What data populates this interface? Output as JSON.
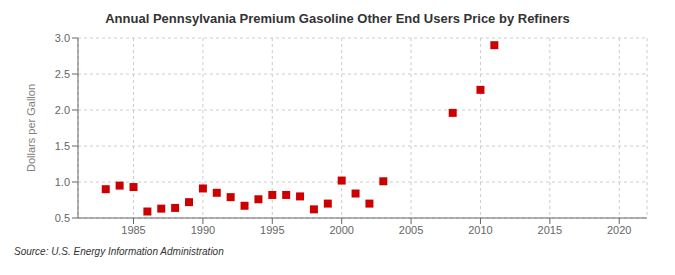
{
  "chart_data": {
    "type": "scatter",
    "title": "Annual Pennsylvania Premium Gasoline Other End Users Price by Refiners",
    "ylabel": "Dollars per Gallon",
    "annotations": [
      "Source: U.S. Energy Information Administration"
    ],
    "color": "#cc0000",
    "marker": "square",
    "grid": true,
    "x": [
      1983,
      1984,
      1985,
      1986,
      1987,
      1988,
      1989,
      1990,
      1991,
      1992,
      1993,
      1994,
      1995,
      1996,
      1997,
      1998,
      1999,
      2000,
      2001,
      2002,
      2003,
      2008,
      2010,
      2011
    ],
    "values": [
      0.9,
      0.95,
      0.93,
      0.59,
      0.63,
      0.64,
      0.72,
      0.91,
      0.85,
      0.79,
      0.67,
      0.76,
      0.82,
      0.82,
      0.8,
      0.62,
      0.7,
      1.02,
      0.84,
      0.7,
      1.01,
      1.96,
      2.28,
      2.9
    ],
    "xlim": [
      1981,
      2022
    ],
    "xticks": [
      1985,
      1990,
      1995,
      2000,
      2005,
      2010,
      2015,
      2020
    ],
    "ylim": [
      0.5,
      3.0
    ],
    "yticks": [
      0.5,
      {
        "value": 1,
        "label": "1.0"
      },
      1.5,
      {
        "value": 2,
        "label": "2.0"
      },
      2.5,
      {
        "value": 3,
        "label": "3.0"
      }
    ]
  }
}
